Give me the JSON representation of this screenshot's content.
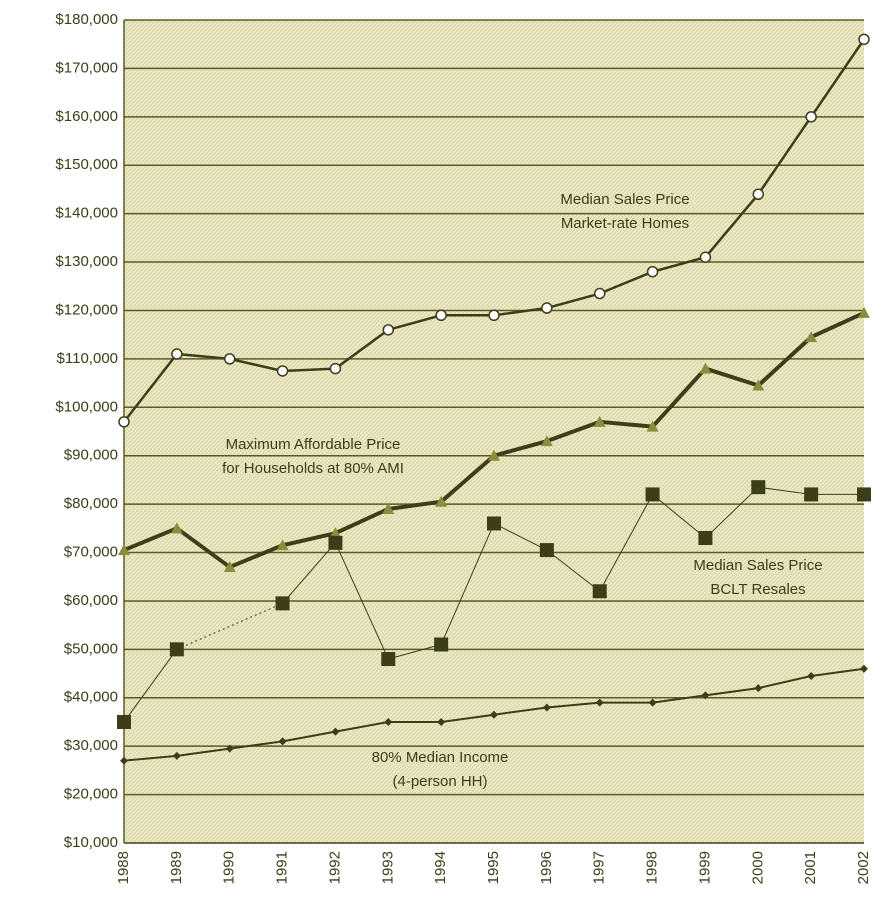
{
  "chart_data": {
    "type": "line",
    "categories": [
      "1988",
      "1989",
      "1990",
      "1991",
      "1992",
      "1993",
      "1994",
      "1995",
      "1996",
      "1997",
      "1998",
      "1999",
      "2000",
      "2001",
      "2002"
    ],
    "series": [
      {
        "label_lines": [
          "Median Sales Price",
          "Market-rate Homes"
        ],
        "color": "#3d3d1a",
        "marker": "circle",
        "values": [
          97000,
          111000,
          110000,
          107500,
          108000,
          116000,
          119000,
          119000,
          120500,
          123500,
          128000,
          131000,
          144000,
          160000,
          176000
        ]
      },
      {
        "label_lines": [
          "Maximum Affordable Price",
          "for Households at 80% AMI"
        ],
        "color": "#3d3d1a",
        "marker": "triangle",
        "values": [
          70500,
          75000,
          67000,
          71500,
          74000,
          79000,
          80500,
          90000,
          93000,
          97000,
          96000,
          108000,
          104500,
          114500,
          119500
        ]
      },
      {
        "label_lines": [
          "Median Sales Price",
          "BCLT Resales"
        ],
        "color": "#3d3d1a",
        "marker": "square",
        "values": [
          35000,
          50000,
          null,
          59500,
          72000,
          48000,
          51000,
          76000,
          70500,
          62000,
          82000,
          73000,
          83500,
          82000,
          82000
        ]
      },
      {
        "label_lines": [
          "80% Median Income",
          "(4-person HH)"
        ],
        "color": "#3d3d1a",
        "marker": "diamond",
        "values": [
          27000,
          28000,
          29500,
          31000,
          33000,
          35000,
          35000,
          36500,
          38000,
          39000,
          39000,
          40500,
          42000,
          44500,
          46000
        ]
      }
    ],
    "ylim": [
      10000,
      180000
    ],
    "yticks": [
      {
        "value": 10000,
        "label": "$10,000"
      },
      {
        "value": 20000,
        "label": "$20,000"
      },
      {
        "value": 30000,
        "label": "$30,000"
      },
      {
        "value": 40000,
        "label": "$40,000"
      },
      {
        "value": 50000,
        "label": "$50,000"
      },
      {
        "value": 60000,
        "label": "$60,000"
      },
      {
        "value": 70000,
        "label": "$70,000"
      },
      {
        "value": 80000,
        "label": "$80,000"
      },
      {
        "value": 90000,
        "label": "$90,000"
      },
      {
        "value": 100000,
        "label": "$100,000"
      },
      {
        "value": 110000,
        "label": "$110,000"
      },
      {
        "value": 120000,
        "label": "$120,000"
      },
      {
        "value": 130000,
        "label": "$130,000"
      },
      {
        "value": 140000,
        "label": "$140,000"
      },
      {
        "value": 150000,
        "label": "$150,000"
      },
      {
        "value": 160000,
        "label": "$160,000"
      },
      {
        "value": 170000,
        "label": "$170,000"
      },
      {
        "value": 180000,
        "label": "$180,000"
      }
    ],
    "grid": true
  }
}
